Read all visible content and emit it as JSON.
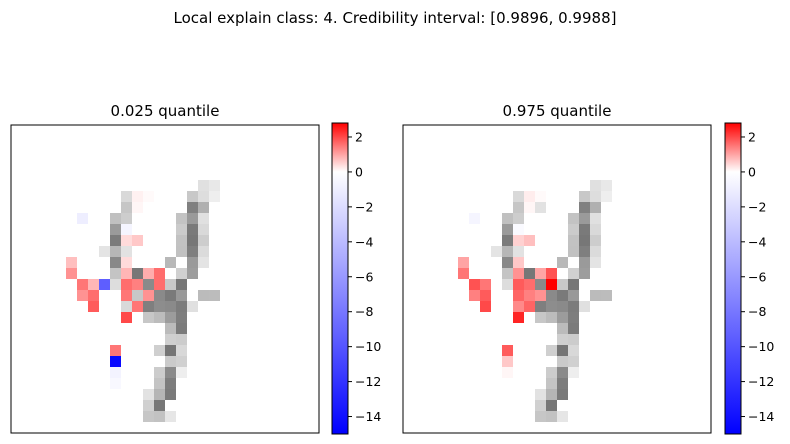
{
  "figure": {
    "suptitle": "Local explain class: 4. Credibility interval: [0.9896, 0.9988]"
  },
  "chart_data": [
    {
      "type": "heatmap",
      "title": "0.025 quantile",
      "grid": false,
      "colorbar": {
        "cmap": "bwr",
        "vmin": -15.0,
        "vmax": 2.8,
        "ticks": [
          2,
          0,
          -2,
          -4,
          -6,
          -8,
          -10,
          -12,
          -14
        ],
        "tick_labels": [
          "2",
          "0",
          "−2",
          "−4",
          "−6",
          "−8",
          "−10",
          "−12",
          "−14"
        ]
      },
      "rows": 28,
      "cols": 28,
      "background_shape": "handwritten digit 4 drawn in gray",
      "highlighted_cells": [
        {
          "row": 7,
          "col": 11,
          "value": 0.15
        },
        {
          "row": 7,
          "col": 12,
          "value": 0.05
        },
        {
          "row": 8,
          "col": 11,
          "value": 0.1
        },
        {
          "row": 8,
          "col": 12,
          "value": 0.0
        },
        {
          "row": 9,
          "col": 6,
          "value": -1.0
        },
        {
          "row": 10,
          "col": 10,
          "value": -0.6
        },
        {
          "row": 11,
          "col": 10,
          "value": 0.4
        },
        {
          "row": 11,
          "col": 11,
          "value": 0.6
        },
        {
          "row": 13,
          "col": 5,
          "value": 0.7
        },
        {
          "row": 13,
          "col": 10,
          "value": 0.4
        },
        {
          "row": 14,
          "col": 5,
          "value": 1.2
        },
        {
          "row": 14,
          "col": 10,
          "value": 0.8
        },
        {
          "row": 14,
          "col": 12,
          "value": 0.9
        },
        {
          "row": 14,
          "col": 13,
          "value": 1.6
        },
        {
          "row": 15,
          "col": 6,
          "value": 1.5
        },
        {
          "row": 15,
          "col": 7,
          "value": 0.8
        },
        {
          "row": 15,
          "col": 8,
          "value": -9.5
        },
        {
          "row": 15,
          "col": 10,
          "value": 1.6
        },
        {
          "row": 15,
          "col": 11,
          "value": 1.4
        },
        {
          "row": 15,
          "col": 13,
          "value": 1.6
        },
        {
          "row": 16,
          "col": 6,
          "value": 1.2
        },
        {
          "row": 16,
          "col": 7,
          "value": 1.6
        },
        {
          "row": 16,
          "col": 10,
          "value": 1.5
        },
        {
          "row": 16,
          "col": 12,
          "value": 1.2
        },
        {
          "row": 17,
          "col": 7,
          "value": 1.8
        },
        {
          "row": 17,
          "col": 11,
          "value": 1.5
        },
        {
          "row": 18,
          "col": 10,
          "value": 2.0
        },
        {
          "row": 21,
          "col": 9,
          "value": 1.5
        },
        {
          "row": 22,
          "col": 9,
          "value": -14.5
        },
        {
          "row": 23,
          "col": 9,
          "value": -0.7
        },
        {
          "row": 24,
          "col": 9,
          "value": -0.4
        }
      ]
    },
    {
      "type": "heatmap",
      "title": "0.975 quantile",
      "grid": false,
      "colorbar": {
        "cmap": "bwr",
        "vmin": -15.0,
        "vmax": 2.8,
        "ticks": [
          2,
          0,
          -2,
          -4,
          -6,
          -8,
          -10,
          -12,
          -14
        ],
        "tick_labels": [
          "2",
          "0",
          "−2",
          "−4",
          "−6",
          "−8",
          "−10",
          "−12",
          "−14"
        ]
      },
      "rows": 28,
      "cols": 28,
      "background_shape": "handwritten digit 4 drawn in gray",
      "highlighted_cells": [
        {
          "row": 7,
          "col": 11,
          "value": 0.2
        },
        {
          "row": 7,
          "col": 12,
          "value": 0.05
        },
        {
          "row": 8,
          "col": 11,
          "value": 0.1
        },
        {
          "row": 9,
          "col": 6,
          "value": -0.6
        },
        {
          "row": 10,
          "col": 10,
          "value": -0.3
        },
        {
          "row": 11,
          "col": 10,
          "value": 0.5
        },
        {
          "row": 11,
          "col": 11,
          "value": 0.7
        },
        {
          "row": 13,
          "col": 5,
          "value": 1.0
        },
        {
          "row": 13,
          "col": 10,
          "value": 0.6
        },
        {
          "row": 14,
          "col": 5,
          "value": 1.5
        },
        {
          "row": 14,
          "col": 10,
          "value": 1.2
        },
        {
          "row": 14,
          "col": 12,
          "value": 1.0
        },
        {
          "row": 14,
          "col": 13,
          "value": 1.9
        },
        {
          "row": 15,
          "col": 6,
          "value": 1.9
        },
        {
          "row": 15,
          "col": 7,
          "value": 1.5
        },
        {
          "row": 15,
          "col": 10,
          "value": 1.8
        },
        {
          "row": 15,
          "col": 11,
          "value": 1.6
        },
        {
          "row": 15,
          "col": 13,
          "value": 2.8
        },
        {
          "row": 16,
          "col": 6,
          "value": 1.4
        },
        {
          "row": 16,
          "col": 7,
          "value": 1.8
        },
        {
          "row": 16,
          "col": 10,
          "value": 1.7
        },
        {
          "row": 16,
          "col": 11,
          "value": 1.4
        },
        {
          "row": 16,
          "col": 12,
          "value": 1.2
        },
        {
          "row": 17,
          "col": 7,
          "value": 2.0
        },
        {
          "row": 17,
          "col": 10,
          "value": 1.3
        },
        {
          "row": 17,
          "col": 11,
          "value": 1.7
        },
        {
          "row": 18,
          "col": 10,
          "value": 2.4
        },
        {
          "row": 21,
          "col": 9,
          "value": 1.8
        },
        {
          "row": 22,
          "col": 9,
          "value": 0.6
        },
        {
          "row": 23,
          "col": 9,
          "value": 0.1
        }
      ]
    }
  ]
}
